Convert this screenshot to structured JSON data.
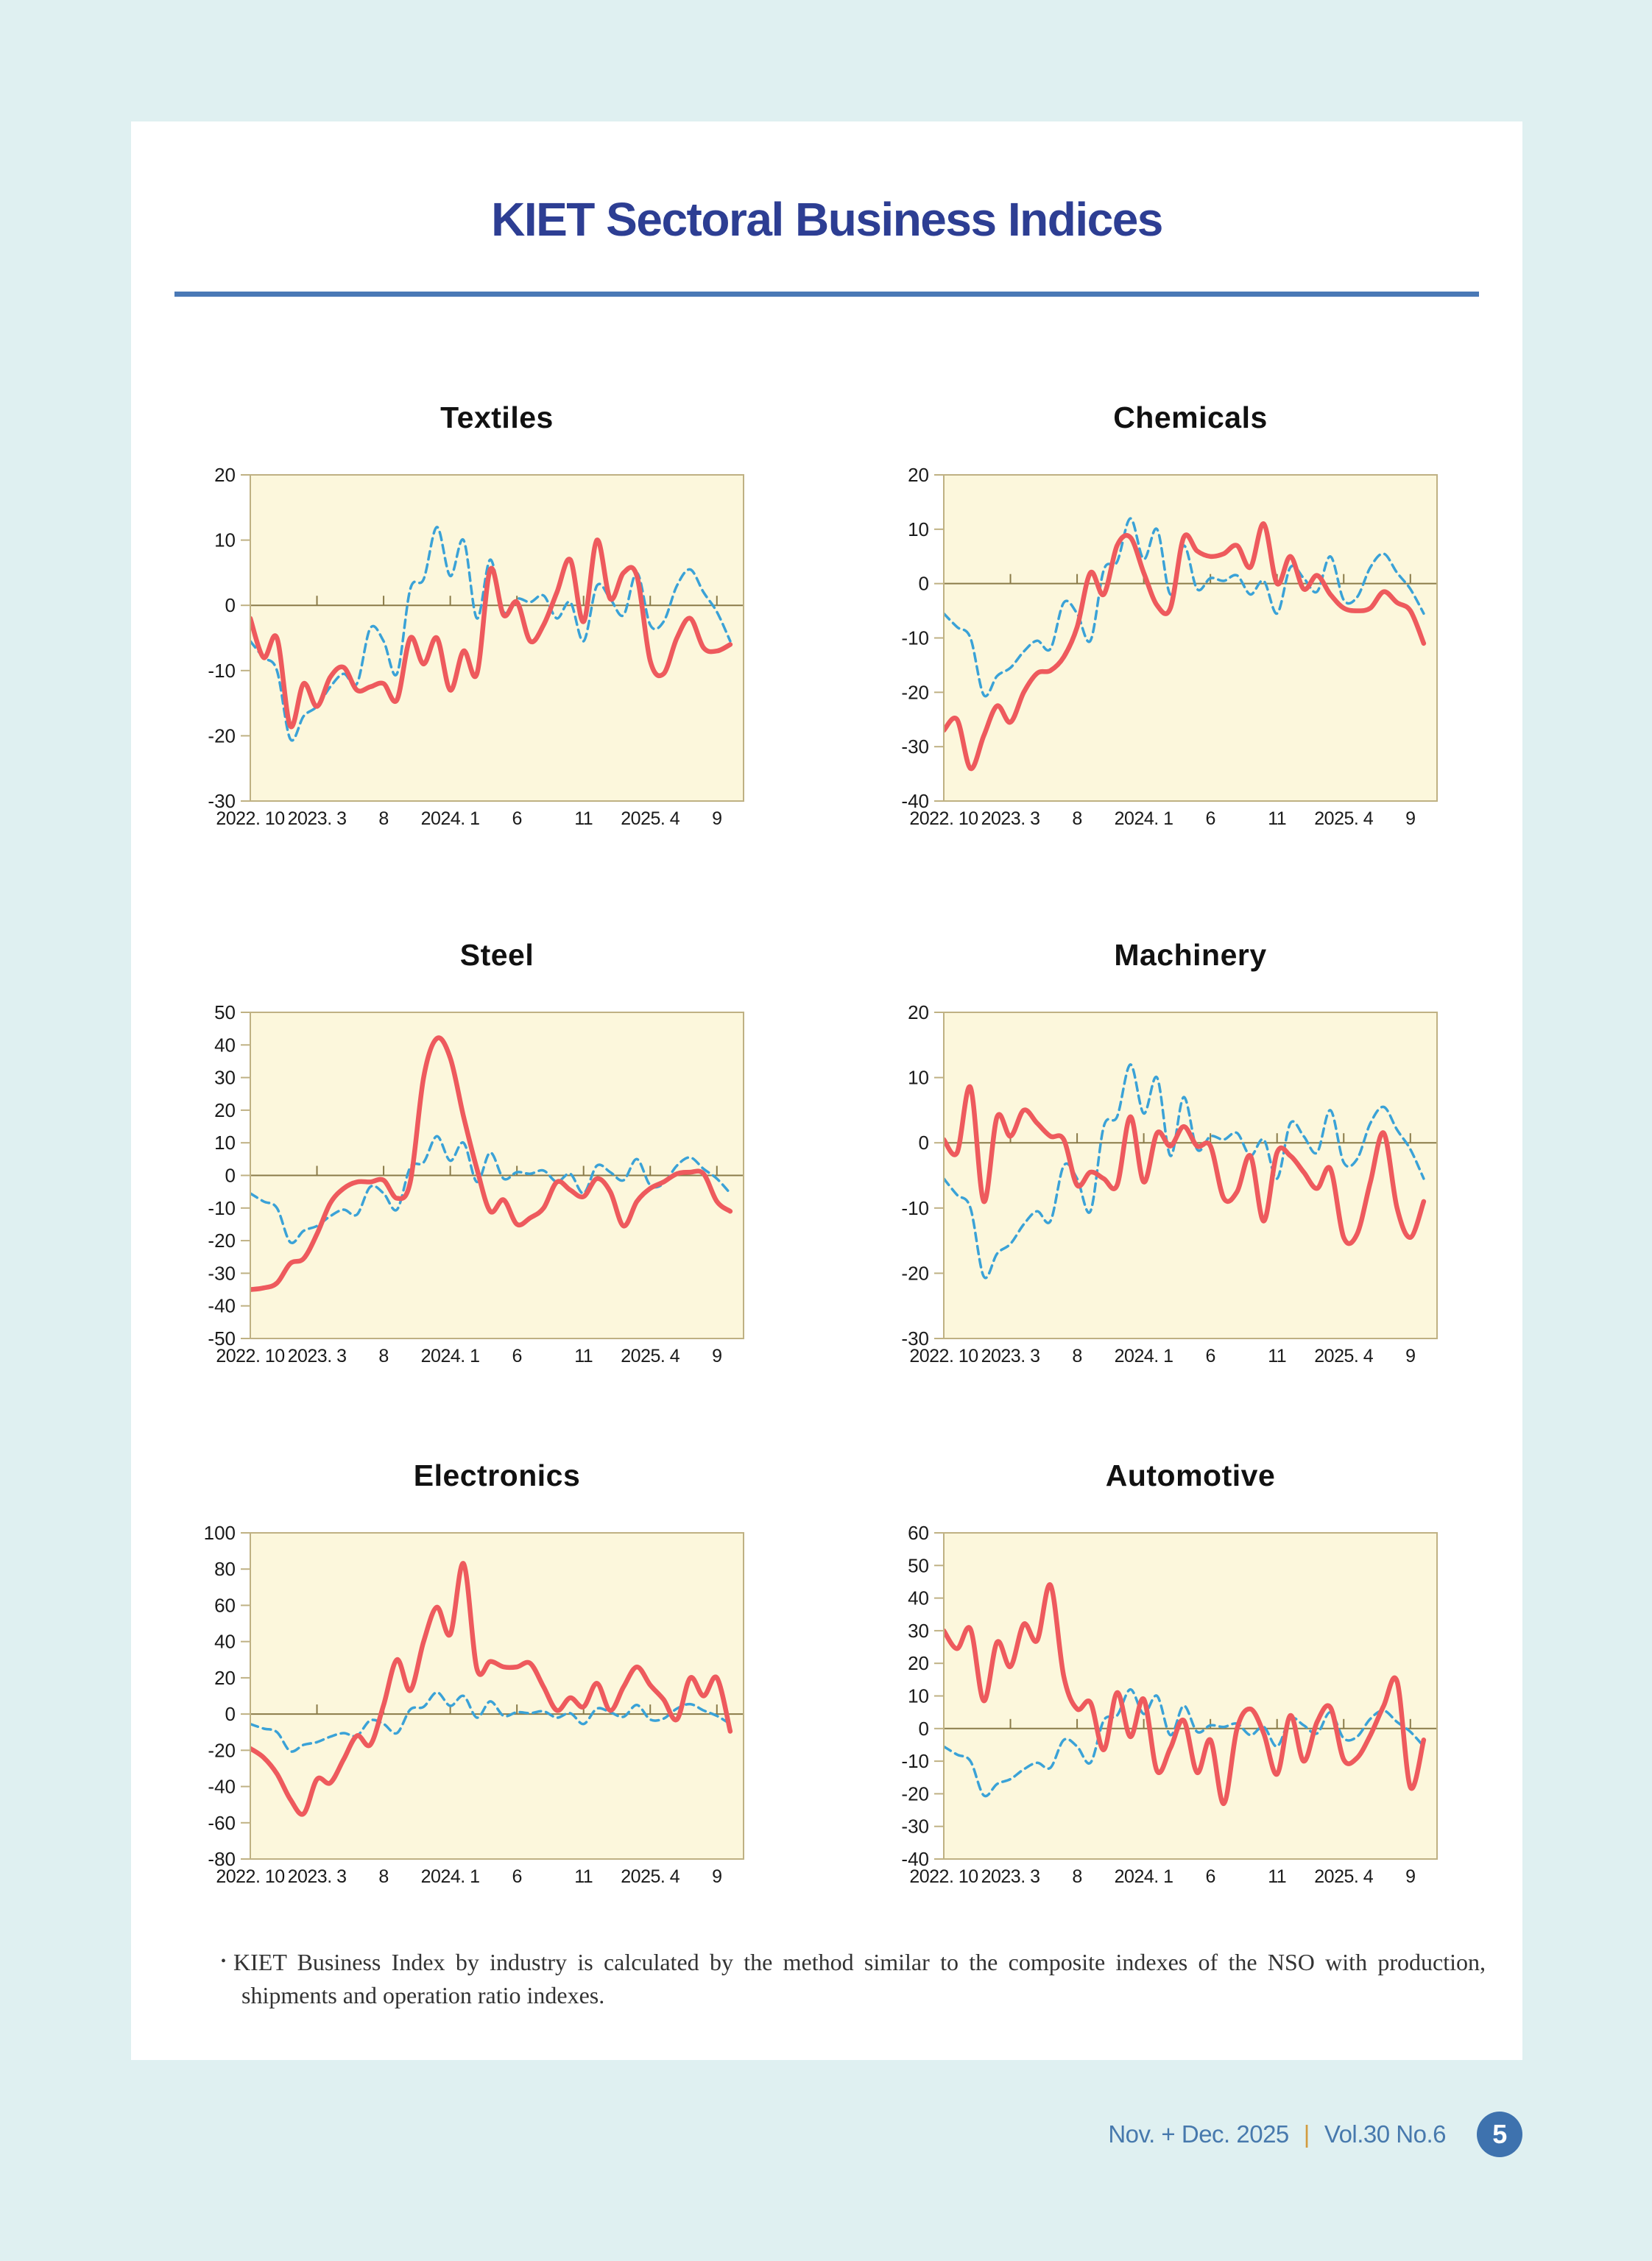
{
  "header": {
    "title": "KIET Sectoral Business Indices"
  },
  "note": {
    "bullet": "•",
    "text": "KIET Business Index by industry is calculated by the method similar to the composite indexes of the NSO with production, shipments and operation ratio indexes."
  },
  "footer": {
    "issue": "Nov. + Dec. 2025",
    "separator": "|",
    "volume_no": "Vol.30  No.6",
    "page_number": "5"
  },
  "colors": {
    "page_bg": "#dff0f1",
    "card_bg": "#ffffff",
    "title_text": "#2d3e93",
    "title_rule": "#4a79b6",
    "chart_title": "#111111",
    "plot_bg": "#fcf7dc",
    "plot_border": "#bfb183",
    "zero_line": "#8a7b49",
    "axis_text": "#1a1a1a",
    "red_line": "#ee5a5d",
    "blue_line": "#3aa2d7",
    "footer_text": "#4779ad",
    "footer_separator": "#d29b3f",
    "badge_bg": "#3e72ae"
  },
  "x_axis": {
    "tick_labels": [
      "2022. 10",
      "2023. 3",
      "8",
      "2024. 1",
      "6",
      "11",
      "2025. 4",
      "9"
    ],
    "tick_indices": [
      0,
      5,
      10,
      15,
      20,
      25,
      30,
      35
    ],
    "n_points": 37,
    "period": "monthly, 2022.10 - 2025.10"
  },
  "chart_data": [
    {
      "type": "line",
      "title": "Textiles",
      "ylim": [
        -30,
        20
      ],
      "ytick_step": 10,
      "grid": "zero-line-only",
      "legend": "none",
      "series": [
        {
          "name": "red_solid",
          "color": "#ee5a5d",
          "style": "solid",
          "values": [
            -2,
            -8,
            -5,
            -18.5,
            -12,
            -15.5,
            -11,
            -9.5,
            -13,
            -12.5,
            -12,
            -14.5,
            -5,
            -9,
            -5,
            -13,
            -7,
            -10.5,
            5.5,
            -1.5,
            0.5,
            -5.5,
            -3,
            2,
            7,
            -2.5,
            10,
            1,
            5,
            4.5,
            -8.5,
            -10.5,
            -5,
            -2,
            -6.5,
            -7,
            -6
          ]
        },
        {
          "name": "blue_dashed",
          "color": "#3aa2d7",
          "style": "dashed",
          "values": [
            -5.5,
            -8,
            -10,
            -20.5,
            -17,
            -15.5,
            -12.5,
            -10.5,
            -12,
            -3.5,
            -5.5,
            -10.5,
            2.5,
            4,
            12,
            4.5,
            10,
            -2,
            7,
            -1,
            1,
            0.5,
            1.5,
            -2,
            0.5,
            -5.5,
            3,
            1,
            -1.5,
            5,
            -3,
            -2.5,
            3,
            5.5,
            2,
            -1,
            -5.5
          ]
        }
      ]
    },
    {
      "type": "line",
      "title": "Chemicals",
      "ylim": [
        -40,
        20
      ],
      "ytick_step": 10,
      "grid": "zero-line-only",
      "legend": "none",
      "series": [
        {
          "name": "red_solid",
          "color": "#ee5a5d",
          "style": "solid",
          "values": [
            -27,
            -25,
            -34,
            -28,
            -22.5,
            -25.5,
            -20,
            -16.5,
            -16,
            -13.5,
            -8,
            2,
            -2,
            7,
            8.5,
            2,
            -4,
            -4.5,
            8.5,
            6,
            5,
            5.5,
            7,
            3,
            11,
            0,
            5,
            -1,
            1.5,
            -2,
            -4.5,
            -5,
            -4.5,
            -1.5,
            -3.5,
            -5,
            -11
          ]
        },
        {
          "name": "blue_dashed",
          "color": "#3aa2d7",
          "style": "dashed",
          "values": [
            -5.5,
            -8,
            -10,
            -20.5,
            -17,
            -15.5,
            -12.5,
            -10.5,
            -12,
            -3.5,
            -5.5,
            -10.5,
            2.5,
            4,
            12,
            4.5,
            10,
            -2,
            7,
            -1,
            1,
            0.5,
            1.5,
            -2,
            0.5,
            -5.5,
            3,
            1,
            -1.5,
            5,
            -3,
            -2.5,
            3,
            5.5,
            2,
            -1,
            -5.5
          ]
        }
      ]
    },
    {
      "type": "line",
      "title": "Steel",
      "ylim": [
        -50,
        50
      ],
      "ytick_step": 10,
      "grid": "zero-line-only",
      "legend": "none",
      "series": [
        {
          "name": "red_solid",
          "color": "#ee5a5d",
          "style": "solid",
          "values": [
            -35,
            -34.5,
            -33,
            -27,
            -25.5,
            -18,
            -8.5,
            -4,
            -2,
            -2,
            -1.5,
            -7,
            -2,
            30,
            42,
            36,
            18,
            2,
            -11,
            -7.5,
            -15,
            -13,
            -10,
            -2,
            -4.5,
            -6.5,
            -1,
            -5,
            -15.5,
            -8,
            -4,
            -2,
            0.5,
            1,
            0.5,
            -8,
            -11
          ]
        },
        {
          "name": "blue_dashed",
          "color": "#3aa2d7",
          "style": "dashed",
          "values": [
            -5.5,
            -8,
            -10,
            -20.5,
            -17,
            -15.5,
            -12.5,
            -10.5,
            -12,
            -3.5,
            -5.5,
            -10.5,
            2.5,
            4,
            12,
            4.5,
            10,
            -2,
            7,
            -1,
            1,
            0.5,
            1.5,
            -2,
            0.5,
            -5.5,
            3,
            1,
            -1.5,
            5,
            -3,
            -2.5,
            3,
            5.5,
            2,
            -1,
            -5.5
          ]
        }
      ]
    },
    {
      "type": "line",
      "title": "Machinery",
      "ylim": [
        -30,
        20
      ],
      "ytick_step": 10,
      "grid": "zero-line-only",
      "legend": "none",
      "series": [
        {
          "name": "red_solid",
          "color": "#ee5a5d",
          "style": "solid",
          "values": [
            0.5,
            -1.5,
            8.5,
            -9,
            4,
            1,
            5,
            3,
            1,
            0.5,
            -6.5,
            -4.5,
            -5.5,
            -6.5,
            4,
            -6,
            1.5,
            -0.5,
            2.5,
            -0.5,
            -0.5,
            -8.5,
            -7.5,
            -2,
            -12,
            -1.5,
            -2,
            -4.5,
            -7,
            -4,
            -14.5,
            -14,
            -6,
            1.5,
            -10,
            -14.5,
            -9
          ]
        },
        {
          "name": "blue_dashed",
          "color": "#3aa2d7",
          "style": "dashed",
          "values": [
            -5.5,
            -8,
            -10,
            -20.5,
            -17,
            -15.5,
            -12.5,
            -10.5,
            -12,
            -3.5,
            -5.5,
            -10.5,
            2.5,
            4,
            12,
            4.5,
            10,
            -2,
            7,
            -1,
            1,
            0.5,
            1.5,
            -2,
            0.5,
            -5.5,
            3,
            1,
            -1.5,
            5,
            -3,
            -2.5,
            3,
            5.5,
            2,
            -1,
            -5.5
          ]
        }
      ]
    },
    {
      "type": "line",
      "title": "Electronics",
      "ylim": [
        -80,
        100
      ],
      "ytick_step": 20,
      "grid": "zero-line-only",
      "legend": "none",
      "series": [
        {
          "name": "red_solid",
          "color": "#ee5a5d",
          "style": "solid",
          "values": [
            -19,
            -24,
            -33,
            -47,
            -55,
            -36,
            -38,
            -25,
            -12,
            -17,
            5,
            30,
            13,
            40,
            59,
            44,
            83,
            25,
            29,
            26,
            26,
            28,
            15,
            2,
            9,
            4,
            17,
            2,
            15,
            26,
            16,
            8,
            -3,
            20,
            10,
            20,
            -9.5
          ]
        },
        {
          "name": "blue_dashed",
          "color": "#3aa2d7",
          "style": "dashed",
          "values": [
            -5.5,
            -8,
            -10,
            -20.5,
            -17,
            -15.5,
            -12.5,
            -10.5,
            -12,
            -3.5,
            -5.5,
            -10.5,
            2.5,
            4,
            12,
            4.5,
            10,
            -2,
            7,
            -1,
            1,
            0.5,
            1.5,
            -2,
            0.5,
            -5.5,
            3,
            1,
            -1.5,
            5,
            -3,
            -2.5,
            3,
            5.5,
            2,
            -1,
            -5.5
          ]
        }
      ]
    },
    {
      "type": "line",
      "title": "Automotive",
      "ylim": [
        -40,
        60
      ],
      "ytick_step": 10,
      "grid": "zero-line-only",
      "legend": "none",
      "series": [
        {
          "name": "red_solid",
          "color": "#ee5a5d",
          "style": "solid",
          "values": [
            30,
            24.5,
            30.5,
            8.5,
            26.5,
            19,
            32,
            27,
            44,
            16,
            6,
            8,
            -6.5,
            11,
            -2.5,
            9,
            -13,
            -6,
            2.5,
            -13.5,
            -3.5,
            -23,
            0,
            6,
            -1.5,
            -14,
            4,
            -10,
            2,
            6.5,
            -9.5,
            -9,
            -2,
            7,
            14.5,
            -18,
            -3.5
          ]
        },
        {
          "name": "blue_dashed",
          "color": "#3aa2d7",
          "style": "dashed",
          "values": [
            -5.5,
            -8,
            -10,
            -20.5,
            -17,
            -15.5,
            -12.5,
            -10.5,
            -12,
            -3.5,
            -5.5,
            -10.5,
            2.5,
            4,
            12,
            4.5,
            10,
            -2,
            7,
            -1,
            1,
            0.5,
            1.5,
            -2,
            0.5,
            -5.5,
            3,
            1,
            -1.5,
            5,
            -3,
            -2.5,
            3,
            5.5,
            2,
            -1,
            -5.5
          ]
        }
      ]
    }
  ]
}
